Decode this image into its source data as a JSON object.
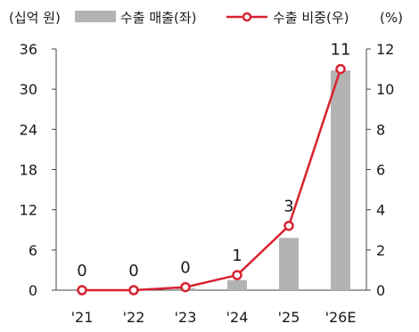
{
  "chart_data": {
    "type": "bar+line",
    "categories": [
      "'21",
      "'22",
      "'23",
      "'24",
      "'25",
      "'26E"
    ],
    "left_axis": {
      "label": "(십억 원)",
      "ticks": [
        "0",
        "6",
        "12",
        "18",
        "24",
        "30",
        "36"
      ],
      "range": [
        0,
        36
      ]
    },
    "right_axis": {
      "label": "(%)",
      "ticks": [
        "0",
        "2",
        "4",
        "6",
        "8",
        "10",
        "12"
      ],
      "range": [
        0,
        12
      ]
    },
    "series": [
      {
        "name": "수출 매출(좌)",
        "type": "bar",
        "axis": "left",
        "color": "#b3b3b3",
        "values": [
          0,
          0,
          0.3,
          1.5,
          7.8,
          32.8
        ]
      },
      {
        "name": "수출 비중(우)",
        "type": "line",
        "axis": "right",
        "color": "#d92231",
        "values": [
          0,
          0,
          0.15,
          0.75,
          3.2,
          11
        ],
        "data_labels": [
          "0",
          "0",
          "0",
          "1",
          "3",
          "11"
        ]
      }
    ],
    "legend_position": "top",
    "grid": false
  }
}
